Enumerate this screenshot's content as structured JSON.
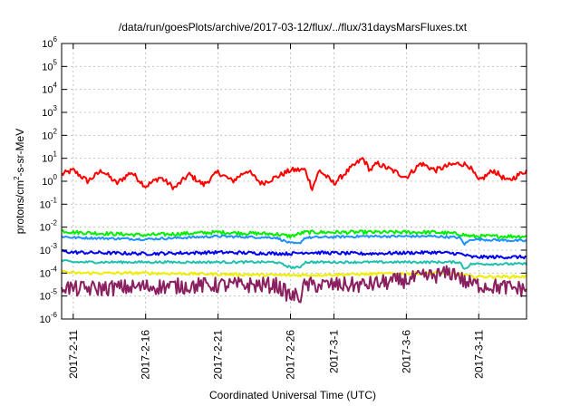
{
  "chart_data": {
    "type": "line",
    "title": "/data/run/goesPlots/archive/2017-03-12/flux/../flux/31daysMarsFluxes.txt",
    "xlabel": "Coordinated Universal Time (UTC)",
    "ylabel": {
      "base": "protons/cm",
      "sup": "2",
      "rest": "-s-sr-MeV"
    },
    "y_scale": "log",
    "ylim_exp": [
      -6,
      6
    ],
    "y_ticks": [
      {
        "base": "10",
        "exp": "-6",
        "value": -6
      },
      {
        "base": "10",
        "exp": "-5",
        "value": -5
      },
      {
        "base": "10",
        "exp": "-4",
        "value": -4
      },
      {
        "base": "10",
        "exp": "-3",
        "value": -3
      },
      {
        "base": "10",
        "exp": "-2",
        "value": -2
      },
      {
        "base": "10",
        "exp": "-1",
        "value": -1
      },
      {
        "base": "10",
        "exp": "0",
        "value": 0
      },
      {
        "base": "10",
        "exp": "1",
        "value": 1
      },
      {
        "base": "10",
        "exp": "2",
        "value": 2
      },
      {
        "base": "10",
        "exp": "3",
        "value": 3
      },
      {
        "base": "10",
        "exp": "4",
        "value": 4
      },
      {
        "base": "10",
        "exp": "5",
        "value": 5
      },
      {
        "base": "10",
        "exp": "6",
        "value": 6
      }
    ],
    "xlim_days": [
      -0.8,
      31.3
    ],
    "x_ticks": [
      {
        "label": "2017-2-11",
        "day": 0
      },
      {
        "label": "2017-2-16",
        "day": 5
      },
      {
        "label": "2017-2-21",
        "day": 10
      },
      {
        "label": "2017-2-26",
        "day": 15
      },
      {
        "label": "2017-3-1",
        "day": 18
      },
      {
        "label": "2017-3-6",
        "day": 23
      },
      {
        "label": "2017-3-11",
        "day": 28
      }
    ],
    "grid": true,
    "series": [
      {
        "color": "#ff0000",
        "noise": 0.12,
        "points": [
          [
            -0.8,
            2
          ],
          [
            0,
            3
          ],
          [
            1,
            1
          ],
          [
            2,
            3
          ],
          [
            3,
            0.8
          ],
          [
            4,
            2.5
          ],
          [
            5,
            0.6
          ],
          [
            6,
            1.5
          ],
          [
            7,
            0.5
          ],
          [
            8,
            2
          ],
          [
            9,
            0.7
          ],
          [
            10,
            2.5
          ],
          [
            11,
            1
          ],
          [
            12,
            3
          ],
          [
            13,
            0.8
          ],
          [
            14,
            1.5
          ],
          [
            15,
            3
          ],
          [
            16,
            3.2
          ],
          [
            16.5,
            0.5
          ],
          [
            17,
            3
          ],
          [
            18,
            0.8
          ],
          [
            19,
            3
          ],
          [
            20,
            10
          ],
          [
            20.5,
            3
          ],
          [
            21,
            6
          ],
          [
            22,
            3
          ],
          [
            23,
            1.5
          ],
          [
            24,
            6
          ],
          [
            25,
            3
          ],
          [
            26,
            5
          ],
          [
            26.7,
            6
          ],
          [
            27.3,
            5
          ],
          [
            28,
            1
          ],
          [
            29,
            3
          ],
          [
            30,
            1
          ],
          [
            31.3,
            3
          ]
        ]
      },
      {
        "color": "#00ee00",
        "noise": 0.08,
        "points": [
          [
            -0.8,
            0.007
          ],
          [
            0,
            0.006
          ],
          [
            5,
            0.0045
          ],
          [
            10,
            0.006
          ],
          [
            14,
            0.005
          ],
          [
            15,
            0.004
          ],
          [
            16,
            0.006
          ],
          [
            20,
            0.006
          ],
          [
            25,
            0.006
          ],
          [
            26.7,
            0.005
          ],
          [
            27.5,
            0.004
          ],
          [
            31.3,
            0.004
          ]
        ]
      },
      {
        "color": "#1e90ff",
        "noise": 0.05,
        "points": [
          [
            -0.8,
            0.004
          ],
          [
            0,
            0.0035
          ],
          [
            5,
            0.003
          ],
          [
            10,
            0.004
          ],
          [
            14,
            0.0035
          ],
          [
            15,
            0.002
          ],
          [
            15.6,
            0.0019
          ],
          [
            16,
            0.0035
          ],
          [
            20,
            0.004
          ],
          [
            25,
            0.004
          ],
          [
            26.7,
            0.0035
          ],
          [
            27,
            0.0018
          ],
          [
            27.5,
            0.003
          ],
          [
            31.3,
            0.0025
          ]
        ]
      },
      {
        "color": "#0000ee",
        "noise": 0.07,
        "points": [
          [
            -0.8,
            0.0009
          ],
          [
            0,
            0.0008
          ],
          [
            5,
            0.0007
          ],
          [
            10,
            0.0008
          ],
          [
            15,
            0.0007
          ],
          [
            16,
            0.0008
          ],
          [
            20,
            0.0007
          ],
          [
            25,
            0.0008
          ],
          [
            26.7,
            0.0007
          ],
          [
            27.5,
            0.0005
          ],
          [
            31.3,
            0.0005
          ]
        ]
      },
      {
        "color": "#20c0b0",
        "noise": 0.05,
        "points": [
          [
            -0.8,
            0.00035
          ],
          [
            0,
            0.0003
          ],
          [
            5,
            0.0003
          ],
          [
            10,
            0.0003
          ],
          [
            14,
            0.0003
          ],
          [
            15,
            0.00018
          ],
          [
            15.6,
            0.00017
          ],
          [
            16,
            0.0003
          ],
          [
            20,
            0.0003
          ],
          [
            25,
            0.0003
          ],
          [
            26.7,
            0.0003
          ],
          [
            27,
            0.00015
          ],
          [
            27.5,
            0.00025
          ],
          [
            31.3,
            0.00025
          ]
        ]
      },
      {
        "color": "#eeee00",
        "noise": 0.06,
        "points": [
          [
            -0.8,
            0.00012
          ],
          [
            0,
            0.0001
          ],
          [
            5,
            0.0001
          ],
          [
            10,
            9e-05
          ],
          [
            15,
            8e-05
          ],
          [
            20,
            9e-05
          ],
          [
            25,
            0.0001
          ],
          [
            26.7,
            9e-05
          ],
          [
            27.5,
            7e-05
          ],
          [
            31.3,
            7e-05
          ]
        ]
      },
      {
        "color": "#8b2060",
        "noise": 0.35,
        "points": [
          [
            -0.8,
            3e-05
          ],
          [
            0,
            2e-05
          ],
          [
            5,
            2.5e-05
          ],
          [
            10,
            3e-05
          ],
          [
            14,
            3e-05
          ],
          [
            15,
            1e-05
          ],
          [
            15.7,
            1e-05
          ],
          [
            16,
            3e-05
          ],
          [
            20,
            3e-05
          ],
          [
            23,
            5e-05
          ],
          [
            26,
            0.0001
          ],
          [
            26.5,
            0.0001
          ],
          [
            27,
            4e-05
          ],
          [
            28,
            3e-05
          ],
          [
            31.3,
            2e-05
          ]
        ]
      }
    ]
  }
}
